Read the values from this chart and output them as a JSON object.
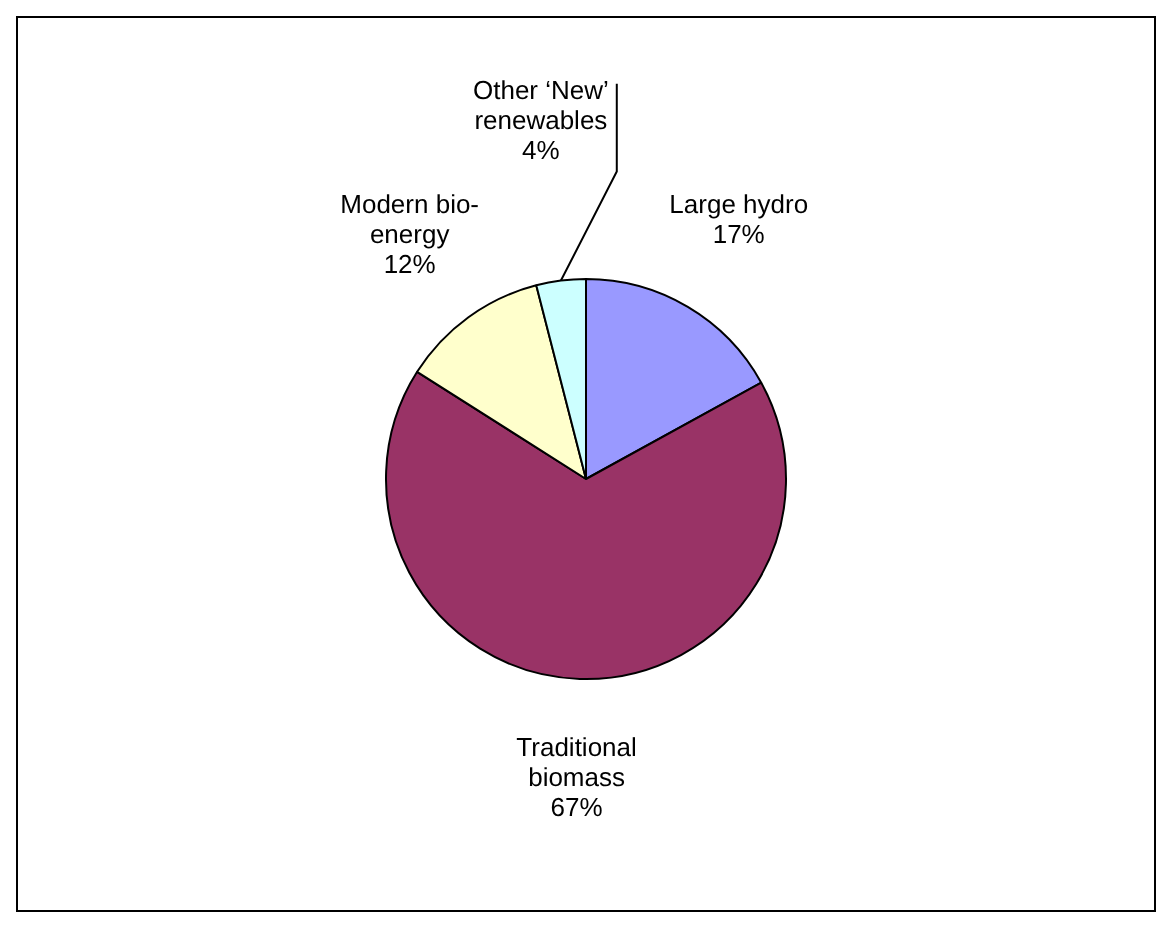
{
  "chart_data": {
    "type": "pie",
    "categories": [
      "Large hydro",
      "Traditional biomass",
      "Modern bio-energy",
      "Other ‘New’ renewables"
    ],
    "values": [
      17,
      67,
      12,
      4
    ],
    "colors": [
      "#9999ff",
      "#993366",
      "#ffffcc",
      "#ccffff"
    ],
    "value_labels": [
      "17%",
      "67%",
      "12%",
      "4%"
    ],
    "legend": false
  }
}
